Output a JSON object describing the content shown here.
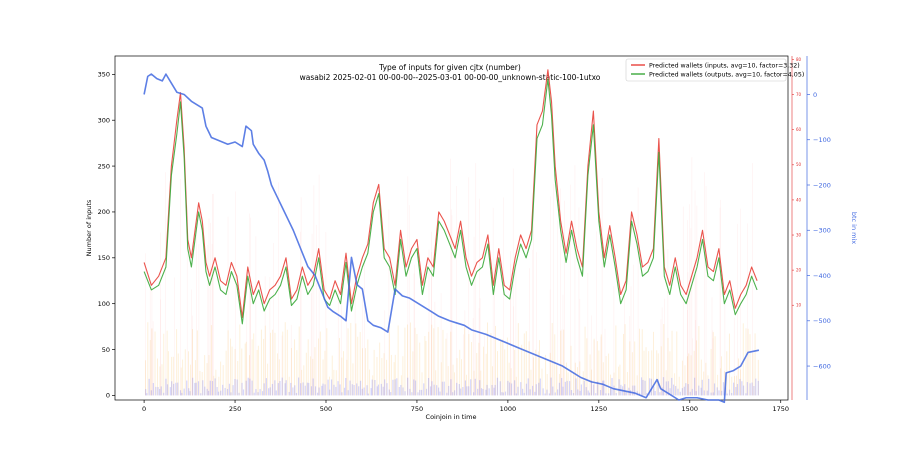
{
  "chart_data": {
    "type": "line",
    "title": "Type of inputs for given cjtx (number)",
    "subtitle": "wasabi2 2025-02-01 00-00-00--2025-03-01 00-00-00_unknown-static-100-1utxo",
    "xlabel": "Coinjoin in time",
    "ylabel": "Number of inputs",
    "y2label": "",
    "y3label": "btc in mix",
    "xlim": [
      -80,
      1770
    ],
    "ylim": [
      -5,
      370
    ],
    "y2lim": [
      -17,
      81
    ],
    "y3lim": [
      -675,
      85
    ],
    "x_ticks": [
      0,
      250,
      500,
      750,
      1000,
      1250,
      1500,
      1750
    ],
    "y_ticks": [
      0,
      50,
      100,
      150,
      200,
      250,
      300,
      350
    ],
    "y2_ticks": [
      10,
      20,
      30,
      40,
      50,
      60,
      70,
      80
    ],
    "y3_ticks": [
      0,
      -100,
      -200,
      -300,
      -400,
      -500,
      -600
    ],
    "grid": false,
    "legend_position": "top-right",
    "series": [
      {
        "name": "Predicted wallets (inputs, avg=10, factor=3.32)",
        "color": "#e8413a",
        "axis": "y",
        "x": [
          0,
          20,
          40,
          60,
          75,
          90,
          100,
          110,
          120,
          130,
          140,
          150,
          160,
          170,
          180,
          195,
          210,
          225,
          240,
          255,
          270,
          285,
          300,
          315,
          330,
          345,
          360,
          375,
          390,
          405,
          420,
          435,
          450,
          465,
          480,
          495,
          510,
          525,
          540,
          555,
          570,
          585,
          600,
          615,
          630,
          645,
          660,
          675,
          690,
          705,
          720,
          735,
          750,
          765,
          780,
          795,
          810,
          825,
          840,
          855,
          870,
          885,
          900,
          915,
          930,
          945,
          960,
          975,
          990,
          1005,
          1020,
          1035,
          1050,
          1065,
          1080,
          1095,
          1110,
          1120,
          1130,
          1145,
          1160,
          1175,
          1190,
          1205,
          1220,
          1235,
          1250,
          1265,
          1280,
          1295,
          1310,
          1325,
          1340,
          1355,
          1370,
          1385,
          1400,
          1415,
          1430,
          1445,
          1460,
          1475,
          1490,
          1505,
          1520,
          1535,
          1550,
          1565,
          1580,
          1595,
          1610,
          1625,
          1640,
          1655,
          1670,
          1685
        ],
        "values": [
          145,
          120,
          130,
          150,
          250,
          300,
          330,
          270,
          170,
          150,
          180,
          210,
          190,
          145,
          130,
          150,
          125,
          120,
          145,
          130,
          85,
          140,
          110,
          125,
          100,
          115,
          120,
          130,
          150,
          105,
          115,
          140,
          120,
          130,
          160,
          115,
          105,
          125,
          110,
          155,
          100,
          130,
          150,
          165,
          210,
          230,
          160,
          150,
          120,
          180,
          140,
          160,
          170,
          120,
          150,
          140,
          200,
          190,
          175,
          160,
          190,
          150,
          130,
          145,
          150,
          175,
          120,
          160,
          120,
          115,
          150,
          175,
          160,
          180,
          295,
          310,
          355,
          320,
          250,
          190,
          155,
          190,
          160,
          140,
          250,
          310,
          200,
          150,
          185,
          150,
          110,
          125,
          200,
          175,
          140,
          145,
          160,
          280,
          140,
          120,
          150,
          120,
          110,
          130,
          150,
          180,
          140,
          135,
          160,
          110,
          125,
          95,
          110,
          120,
          140,
          125
        ]
      },
      {
        "name": "Predicted wallets (outputs, avg=10, factor=4.05)",
        "color": "#3aa83a",
        "axis": "y",
        "x": [
          0,
          20,
          40,
          60,
          75,
          90,
          100,
          110,
          120,
          130,
          140,
          150,
          160,
          170,
          180,
          195,
          210,
          225,
          240,
          255,
          270,
          285,
          300,
          315,
          330,
          345,
          360,
          375,
          390,
          405,
          420,
          435,
          450,
          465,
          480,
          495,
          510,
          525,
          540,
          555,
          570,
          585,
          600,
          615,
          630,
          645,
          660,
          675,
          690,
          705,
          720,
          735,
          750,
          765,
          780,
          795,
          810,
          825,
          840,
          855,
          870,
          885,
          900,
          915,
          930,
          945,
          960,
          975,
          990,
          1005,
          1020,
          1035,
          1050,
          1065,
          1080,
          1095,
          1110,
          1120,
          1130,
          1145,
          1160,
          1175,
          1190,
          1205,
          1220,
          1235,
          1250,
          1265,
          1280,
          1295,
          1310,
          1325,
          1340,
          1355,
          1370,
          1385,
          1400,
          1415,
          1430,
          1445,
          1460,
          1475,
          1490,
          1505,
          1520,
          1535,
          1550,
          1565,
          1580,
          1595,
          1610,
          1625,
          1640,
          1655,
          1670,
          1685
        ],
        "values": [
          135,
          115,
          120,
          140,
          240,
          285,
          320,
          260,
          160,
          140,
          170,
          200,
          180,
          135,
          120,
          140,
          115,
          110,
          135,
          120,
          78,
          130,
          100,
          115,
          92,
          105,
          110,
          120,
          140,
          98,
          105,
          130,
          110,
          120,
          150,
          105,
          98,
          115,
          100,
          145,
          92,
          120,
          140,
          155,
          200,
          220,
          150,
          140,
          110,
          170,
          130,
          150,
          160,
          110,
          140,
          130,
          190,
          180,
          165,
          150,
          180,
          140,
          120,
          135,
          140,
          165,
          110,
          150,
          110,
          105,
          140,
          165,
          150,
          170,
          280,
          295,
          345,
          305,
          235,
          180,
          145,
          180,
          150,
          130,
          240,
          295,
          190,
          140,
          175,
          140,
          100,
          115,
          190,
          165,
          130,
          135,
          150,
          265,
          130,
          110,
          140,
          110,
          100,
          120,
          140,
          170,
          130,
          125,
          150,
          100,
          115,
          88,
          100,
          110,
          130,
          115
        ]
      },
      {
        "name": "",
        "color": "#4169e1",
        "axis": "y3",
        "x": [
          0,
          10,
          20,
          35,
          50,
          60,
          75,
          90,
          110,
          130,
          150,
          160,
          170,
          185,
          200,
          215,
          230,
          250,
          270,
          280,
          295,
          300,
          315,
          330,
          340,
          350,
          365,
          380,
          395,
          410,
          430,
          450,
          470,
          490,
          505,
          520,
          540,
          555,
          570,
          585,
          600,
          615,
          630,
          650,
          670,
          690,
          710,
          730,
          750,
          770,
          790,
          810,
          840,
          860,
          880,
          900,
          920,
          940,
          970,
          1000,
          1030,
          1060,
          1090,
          1120,
          1150,
          1180,
          1200,
          1230,
          1260,
          1290,
          1320,
          1350,
          1380,
          1410,
          1420,
          1440,
          1470,
          1490,
          1520,
          1550,
          1580,
          1595,
          1600,
          1620,
          1640,
          1660,
          1690
        ],
        "values": [
          0,
          40,
          45,
          35,
          30,
          45,
          25,
          5,
          0,
          -15,
          -25,
          -30,
          -70,
          -95,
          -100,
          -105,
          -110,
          -105,
          -115,
          -70,
          -80,
          -110,
          -130,
          -145,
          -170,
          -200,
          -225,
          -250,
          -275,
          -300,
          -340,
          -380,
          -400,
          -440,
          -470,
          -480,
          -490,
          -500,
          -360,
          -420,
          -430,
          -500,
          -510,
          -515,
          -525,
          -430,
          -445,
          -450,
          -460,
          -470,
          -480,
          -490,
          -500,
          -505,
          -510,
          -520,
          -525,
          -530,
          -540,
          -550,
          -560,
          -570,
          -580,
          -590,
          -600,
          -615,
          -625,
          -635,
          -640,
          -650,
          -655,
          -660,
          -670,
          -630,
          -650,
          -660,
          -675,
          -670,
          -670,
          -675,
          -675,
          -680,
          -615,
          -610,
          -600,
          -570,
          -565
        ]
      }
    ],
    "background_series": [
      {
        "name": "",
        "color": "#f6a623",
        "description": "faint orange vertical bars (thin), y-axis counts"
      },
      {
        "name": "",
        "color": "#ff7f7f",
        "description": "faint pink vertical bars, y-axis counts"
      },
      {
        "name": "",
        "color": "#6a6af0",
        "description": "blue spikes near bottom, y-axis counts"
      }
    ]
  }
}
